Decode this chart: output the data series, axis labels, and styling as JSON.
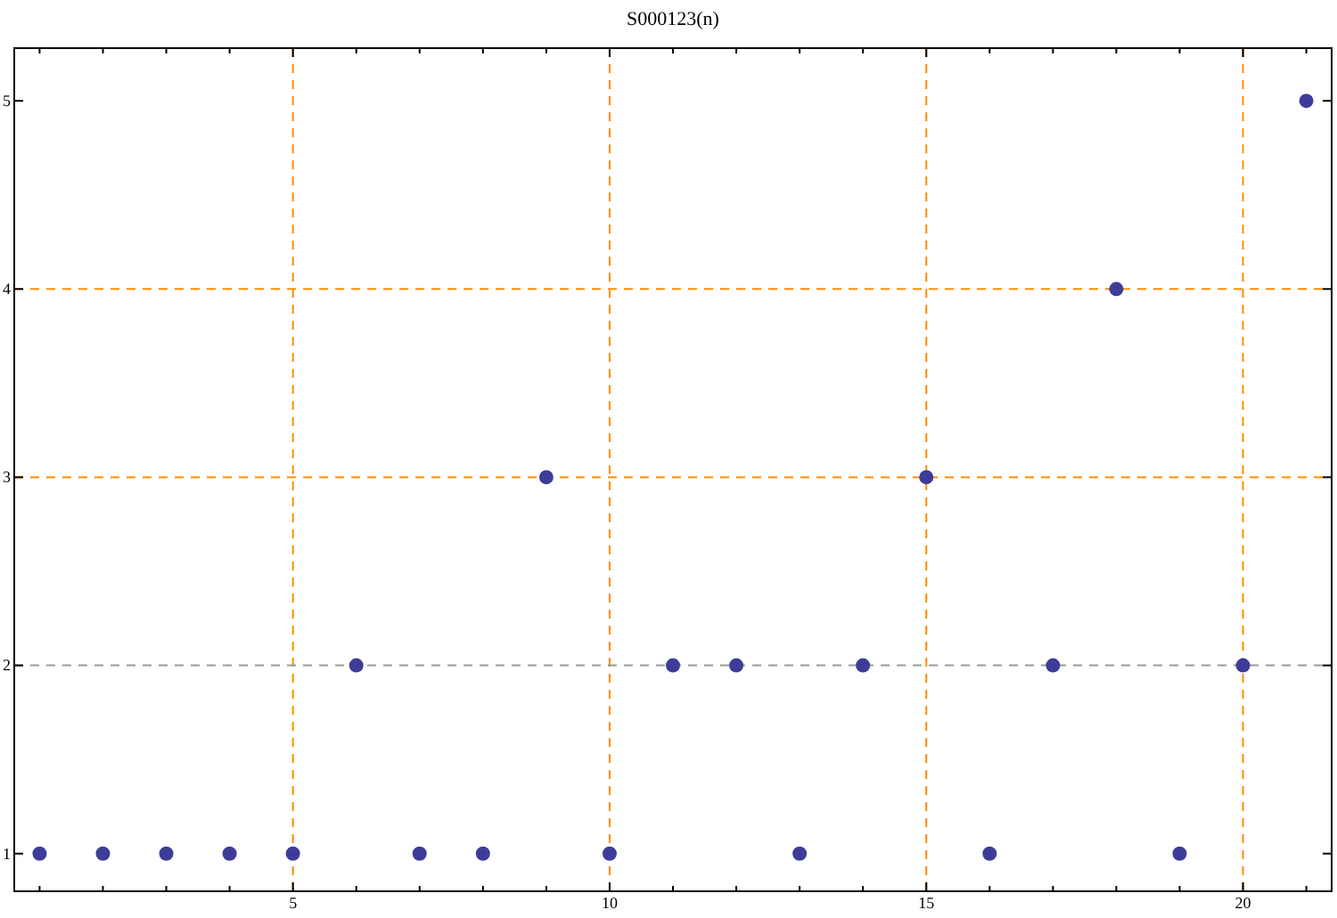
{
  "chart_data": {
    "type": "scatter",
    "title": "S000123(n)",
    "x": [
      1,
      2,
      3,
      4,
      5,
      6,
      7,
      8,
      9,
      10,
      11,
      12,
      13,
      14,
      15,
      16,
      17,
      18,
      19,
      20,
      21
    ],
    "series": [
      {
        "color": "#3d3d99",
        "values": [
          1,
          1,
          1,
          1,
          1,
          2,
          1,
          1,
          3,
          1,
          2,
          2,
          1,
          2,
          3,
          1,
          2,
          4,
          1,
          2,
          5
        ]
      }
    ],
    "marker": "circle",
    "xlim": [
      0.6,
      21.4
    ],
    "ylim": [
      0.8,
      5.28
    ],
    "xticks": [
      {
        "value": 1,
        "label": null
      },
      {
        "value": 2,
        "label": null
      },
      {
        "value": 3,
        "label": null
      },
      {
        "value": 4,
        "label": null
      },
      5,
      {
        "value": 6,
        "label": null
      },
      {
        "value": 7,
        "label": null
      },
      {
        "value": 8,
        "label": null
      },
      {
        "value": 9,
        "label": null
      },
      10,
      {
        "value": 11,
        "label": null
      },
      {
        "value": 12,
        "label": null
      },
      {
        "value": 13,
        "label": null
      },
      {
        "value": 14,
        "label": null
      },
      15,
      {
        "value": 16,
        "label": null
      },
      {
        "value": 17,
        "label": null
      },
      {
        "value": 18,
        "label": null
      },
      {
        "value": 19,
        "label": null
      },
      20,
      {
        "value": 21,
        "label": null
      }
    ],
    "yticks": [
      1,
      2,
      3,
      4,
      5
    ],
    "ref_lines": [
      {
        "axis": "x",
        "value": 5,
        "color": "#ff8c00",
        "line_style": "dashed"
      },
      {
        "axis": "x",
        "value": 10,
        "color": "#ff8c00",
        "line_style": "dashed"
      },
      {
        "axis": "x",
        "value": 15,
        "color": "#ff8c00",
        "line_style": "dashed"
      },
      {
        "axis": "x",
        "value": 20,
        "color": "#ff8c00",
        "line_style": "dashed"
      },
      {
        "axis": "y",
        "value": 2,
        "color": "#999999",
        "line_style": "dashed"
      },
      {
        "axis": "y",
        "value": 3,
        "color": "#ff8c00",
        "line_style": "dashed"
      },
      {
        "axis": "y",
        "value": 4,
        "color": "#ff8c00",
        "line_style": "dashed"
      }
    ]
  }
}
